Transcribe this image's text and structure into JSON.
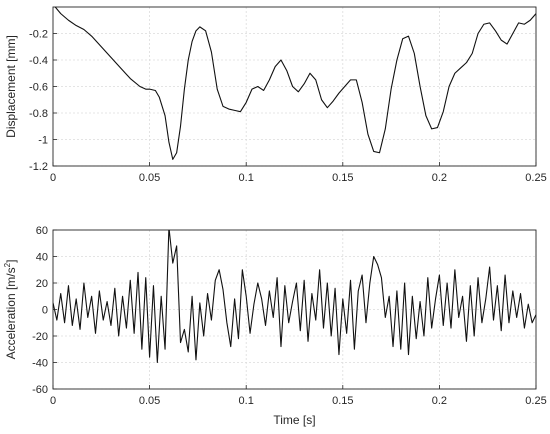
{
  "chart_data": [
    {
      "type": "line",
      "xlabel": "",
      "ylabel": "Displacement [mm]",
      "xlim": [
        0,
        0.25
      ],
      "ylim": [
        -1.2,
        0
      ],
      "xticks": [
        0,
        0.05,
        0.1,
        0.15,
        0.2,
        0.25
      ],
      "xtick_labels": [
        "0",
        "0.05",
        "0.1",
        "0.15",
        "0.2",
        "0.25"
      ],
      "yticks": [
        -1.2,
        -1,
        -0.8,
        -0.6,
        -0.4,
        -0.2
      ],
      "ytick_labels": [
        "-1.2",
        "-1",
        "-0.8",
        "-0.6",
        "-0.4",
        "-0.2"
      ],
      "grid": true,
      "color": "#111111",
      "x": [
        0,
        0.004,
        0.008,
        0.012,
        0.016,
        0.02,
        0.025,
        0.03,
        0.035,
        0.04,
        0.045,
        0.048,
        0.05,
        0.053,
        0.055,
        0.058,
        0.06,
        0.062,
        0.064,
        0.066,
        0.068,
        0.07,
        0.072,
        0.074,
        0.076,
        0.079,
        0.082,
        0.085,
        0.088,
        0.091,
        0.094,
        0.097,
        0.1,
        0.103,
        0.106,
        0.109,
        0.112,
        0.115,
        0.118,
        0.121,
        0.124,
        0.127,
        0.13,
        0.133,
        0.136,
        0.139,
        0.142,
        0.145,
        0.148,
        0.151,
        0.154,
        0.157,
        0.16,
        0.163,
        0.166,
        0.169,
        0.172,
        0.175,
        0.178,
        0.181,
        0.184,
        0.187,
        0.19,
        0.193,
        0.196,
        0.199,
        0.202,
        0.205,
        0.208,
        0.211,
        0.214,
        0.217,
        0.22,
        0.223,
        0.226,
        0.229,
        0.232,
        0.235,
        0.238,
        0.241,
        0.244,
        0.247,
        0.25
      ],
      "y": [
        0.02,
        -0.05,
        -0.1,
        -0.14,
        -0.17,
        -0.22,
        -0.3,
        -0.38,
        -0.46,
        -0.54,
        -0.6,
        -0.62,
        -0.62,
        -0.63,
        -0.68,
        -0.82,
        -1.02,
        -1.15,
        -1.1,
        -0.9,
        -0.62,
        -0.4,
        -0.26,
        -0.18,
        -0.15,
        -0.18,
        -0.34,
        -0.62,
        -0.75,
        -0.77,
        -0.78,
        -0.79,
        -0.72,
        -0.62,
        -0.6,
        -0.63,
        -0.55,
        -0.45,
        -0.4,
        -0.48,
        -0.6,
        -0.64,
        -0.58,
        -0.5,
        -0.55,
        -0.7,
        -0.76,
        -0.71,
        -0.65,
        -0.6,
        -0.55,
        -0.55,
        -0.72,
        -0.96,
        -1.09,
        -1.1,
        -0.92,
        -0.62,
        -0.4,
        -0.24,
        -0.22,
        -0.35,
        -0.6,
        -0.82,
        -0.92,
        -0.91,
        -0.79,
        -0.6,
        -0.5,
        -0.46,
        -0.42,
        -0.35,
        -0.2,
        -0.13,
        -0.12,
        -0.18,
        -0.25,
        -0.28,
        -0.2,
        -0.12,
        -0.13,
        -0.1,
        -0.05
      ]
    },
    {
      "type": "line",
      "xlabel": "Time [s]",
      "ylabel": "Acceleration [m/s",
      "ylabel_sup": "2",
      "ylabel_close": "]",
      "xlim": [
        0,
        0.25
      ],
      "ylim": [
        -60,
        60
      ],
      "xticks": [
        0,
        0.05,
        0.1,
        0.15,
        0.2,
        0.25
      ],
      "xtick_labels": [
        "0",
        "0.05",
        "0.1",
        "0.15",
        "0.2",
        "0.25"
      ],
      "yticks": [
        -60,
        -40,
        -20,
        0,
        20,
        40,
        60
      ],
      "ytick_labels": [
        "-60",
        "-40",
        "-20",
        "0",
        "20",
        "40",
        "60"
      ],
      "grid": true,
      "color": "#111111",
      "x": [
        0,
        0.002,
        0.004,
        0.006,
        0.008,
        0.01,
        0.012,
        0.014,
        0.016,
        0.018,
        0.02,
        0.022,
        0.024,
        0.026,
        0.028,
        0.03,
        0.032,
        0.034,
        0.036,
        0.038,
        0.04,
        0.042,
        0.044,
        0.046,
        0.048,
        0.05,
        0.052,
        0.054,
        0.056,
        0.058,
        0.06,
        0.062,
        0.064,
        0.066,
        0.068,
        0.07,
        0.072,
        0.074,
        0.076,
        0.078,
        0.08,
        0.082,
        0.084,
        0.086,
        0.088,
        0.09,
        0.092,
        0.094,
        0.096,
        0.098,
        0.1,
        0.102,
        0.104,
        0.106,
        0.108,
        0.11,
        0.112,
        0.114,
        0.116,
        0.118,
        0.12,
        0.122,
        0.124,
        0.126,
        0.128,
        0.13,
        0.132,
        0.134,
        0.136,
        0.138,
        0.14,
        0.142,
        0.144,
        0.146,
        0.148,
        0.15,
        0.152,
        0.154,
        0.156,
        0.158,
        0.16,
        0.162,
        0.164,
        0.166,
        0.168,
        0.17,
        0.172,
        0.174,
        0.176,
        0.178,
        0.18,
        0.182,
        0.184,
        0.186,
        0.188,
        0.19,
        0.192,
        0.194,
        0.196,
        0.198,
        0.2,
        0.202,
        0.204,
        0.206,
        0.208,
        0.21,
        0.212,
        0.214,
        0.216,
        0.218,
        0.22,
        0.222,
        0.224,
        0.226,
        0.228,
        0.23,
        0.232,
        0.234,
        0.236,
        0.238,
        0.24,
        0.242,
        0.244,
        0.246,
        0.248,
        0.25
      ],
      "y": [
        5,
        -8,
        12,
        -10,
        18,
        -12,
        8,
        -15,
        20,
        -6,
        10,
        -18,
        14,
        -8,
        6,
        -12,
        16,
        -20,
        10,
        -14,
        22,
        -18,
        28,
        -30,
        24,
        -36,
        18,
        -40,
        10,
        -30,
        62,
        35,
        48,
        -25,
        -15,
        -32,
        10,
        -38,
        5,
        -20,
        12,
        -8,
        22,
        30,
        15,
        -10,
        -28,
        8,
        -22,
        30,
        10,
        -18,
        4,
        20,
        8,
        -12,
        14,
        -6,
        24,
        -28,
        18,
        -10,
        6,
        20,
        -16,
        22,
        -24,
        12,
        -8,
        30,
        -14,
        20,
        -20,
        16,
        -34,
        8,
        -18,
        22,
        -30,
        14,
        26,
        -10,
        20,
        40,
        34,
        24,
        -6,
        10,
        -28,
        14,
        -30,
        20,
        -34,
        10,
        -22,
        6,
        -20,
        24,
        -14,
        8,
        26,
        -12,
        20,
        -14,
        30,
        -6,
        10,
        -24,
        18,
        -20,
        24,
        -10,
        8,
        32,
        -8,
        18,
        -16,
        26,
        -10,
        14,
        -6,
        12,
        -14,
        4,
        -10,
        -4
      ]
    }
  ]
}
